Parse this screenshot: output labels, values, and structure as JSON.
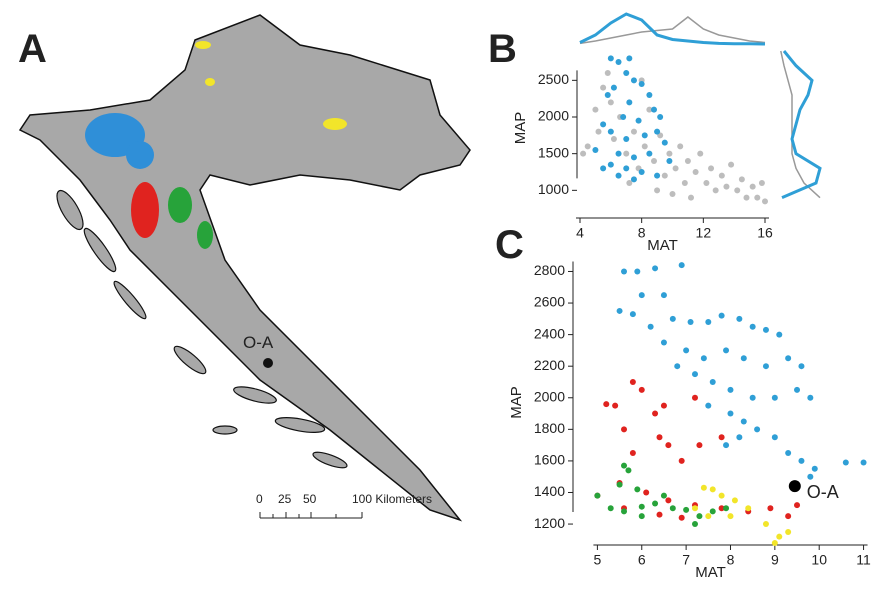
{
  "map": {
    "panel_label": "A",
    "site_label": "O-A",
    "scale_labels": [
      "0",
      "25",
      "50",
      "100 Kilometers"
    ]
  },
  "chart_data": [
    {
      "type": "scatter",
      "panel_label": "B",
      "xlabel": "MAT",
      "ylabel": "MAP",
      "xlim": [
        4,
        16
      ],
      "ylim": [
        800,
        2900
      ],
      "xticks": [
        4,
        8,
        12,
        16
      ],
      "yticks": [
        1000,
        1500,
        2000,
        2500
      ],
      "series": [
        {
          "color": "#bdbdbd",
          "x": [
            4.2,
            4.5,
            5.0,
            5.2,
            5.5,
            6.0,
            6.2,
            6.6,
            7.0,
            7.5,
            7.8,
            8.2,
            8.5,
            8.8,
            9.2,
            9.5,
            9.8,
            10.2,
            10.5,
            10.8,
            11.0,
            11.5,
            11.8,
            12.2,
            12.5,
            12.8,
            13.2,
            13.5,
            13.8,
            14.2,
            14.5,
            14.8,
            15.2,
            15.5,
            15.8,
            16.0,
            9.0,
            10.0,
            11.2,
            7.2,
            5.8,
            8.0
          ],
          "values": [
            1500,
            1600,
            2100,
            1800,
            2400,
            2200,
            1700,
            2000,
            1500,
            1800,
            1300,
            1600,
            2100,
            1400,
            1750,
            1200,
            1500,
            1300,
            1600,
            1100,
            1400,
            1250,
            1500,
            1100,
            1300,
            1000,
            1200,
            1050,
            1350,
            1000,
            1150,
            900,
            1050,
            900,
            1100,
            850,
            1000,
            950,
            900,
            1100,
            2600,
            2500
          ]
        },
        {
          "color": "#2f9fd6",
          "x": [
            6.0,
            6.5,
            7.0,
            7.5,
            8.0,
            8.5,
            6.2,
            5.8,
            7.2,
            8.8,
            9.2,
            6.8,
            7.8,
            5.5,
            6.0,
            8.2,
            9.0,
            7.0,
            9.5,
            5.0,
            6.5,
            7.5,
            8.5,
            6.0,
            7.0,
            8.0,
            9.0,
            6.5,
            7.5,
            5.5,
            9.8,
            7.2
          ],
          "values": [
            2800,
            2750,
            2600,
            2500,
            2450,
            2300,
            2400,
            2300,
            2200,
            2100,
            2000,
            2000,
            1950,
            1900,
            1800,
            1750,
            1800,
            1700,
            1650,
            1550,
            1500,
            1450,
            1500,
            1350,
            1300,
            1250,
            1200,
            1200,
            1150,
            1300,
            1400,
            2800
          ]
        }
      ],
      "marginal_x": {
        "x": [
          4,
          5,
          6,
          7,
          8,
          9,
          10,
          11,
          12,
          13,
          14,
          15,
          16
        ],
        "series": [
          {
            "color": "#999999",
            "values": [
              0.02,
              0.1,
              0.2,
              0.3,
              0.4,
              0.45,
              0.5,
              0.9,
              0.5,
              0.3,
              0.2,
              0.1,
              0.05
            ]
          },
          {
            "color": "#2f9fd6",
            "values": [
              0.05,
              0.3,
              0.7,
              1.0,
              0.8,
              0.3,
              0.15,
              0.1,
              0.05,
              0.02,
              0.01,
              0.01,
              0
            ]
          }
        ]
      },
      "marginal_y": {
        "y": [
          900,
          1100,
          1300,
          1500,
          1700,
          1900,
          2100,
          2300,
          2500,
          2700,
          2900
        ],
        "series": [
          {
            "color": "#999999",
            "values": [
              1.0,
              0.6,
              0.4,
              0.3,
              0.3,
              0.3,
              0.3,
              0.3,
              0.2,
              0.1,
              0.02
            ]
          },
          {
            "color": "#2f9fd6",
            "values": [
              0.05,
              0.9,
              1.0,
              0.4,
              0.3,
              0.4,
              0.5,
              0.7,
              0.8,
              0.4,
              0.1
            ]
          }
        ]
      }
    },
    {
      "type": "scatter",
      "panel_label": "C",
      "xlabel": "MAT",
      "ylabel": "MAP",
      "xlim": [
        4.45,
        11.1
      ],
      "ylim": [
        1080,
        2860
      ],
      "xticks": [
        5,
        6,
        7,
        8,
        9,
        10,
        11
      ],
      "yticks": [
        1200,
        1400,
        1600,
        1800,
        2000,
        2200,
        2400,
        2600,
        2800
      ],
      "series": [
        {
          "color": "#2f9fd6",
          "x": [
            5.6,
            5.9,
            6.3,
            6.9,
            6.0,
            6.5,
            5.5,
            5.8,
            6.2,
            6.7,
            7.1,
            7.5,
            7.8,
            8.2,
            8.5,
            8.8,
            9.1,
            6.5,
            7.0,
            7.4,
            7.9,
            8.3,
            8.8,
            9.3,
            9.6,
            6.8,
            7.2,
            7.6,
            8.0,
            8.5,
            9.0,
            9.5,
            9.8,
            7.5,
            8.0,
            8.3,
            8.6,
            9.0,
            8.2,
            9.3,
            9.6,
            9.9,
            10.6,
            11.0,
            7.9,
            9.8
          ],
          "values": [
            2800,
            2800,
            2820,
            2840,
            2650,
            2650,
            2550,
            2530,
            2450,
            2500,
            2480,
            2480,
            2520,
            2500,
            2450,
            2430,
            2400,
            2350,
            2300,
            2250,
            2300,
            2250,
            2200,
            2250,
            2200,
            2200,
            2150,
            2100,
            2050,
            2000,
            2000,
            2050,
            2000,
            1950,
            1900,
            1850,
            1800,
            1750,
            1750,
            1650,
            1600,
            1550,
            1590,
            1590,
            1700,
            1500
          ]
        },
        {
          "color": "#e0231f",
          "x": [
            5.2,
            5.4,
            6.5,
            6.3,
            5.8,
            6.0,
            5.6,
            5.8,
            6.4,
            6.6,
            7.3,
            7.8,
            6.9,
            7.2,
            5.5,
            5.0,
            5.6,
            6.1,
            6.6,
            7.2,
            7.8,
            8.4,
            8.9,
            9.3,
            9.5,
            6.4,
            6.9
          ],
          "values": [
            1960,
            1950,
            1950,
            1900,
            2100,
            2050,
            1800,
            1650,
            1750,
            1700,
            1700,
            1750,
            1600,
            2000,
            1460,
            1380,
            1300,
            1400,
            1350,
            1320,
            1300,
            1280,
            1300,
            1250,
            1320,
            1260,
            1240
          ]
        },
        {
          "color": "#27a33a",
          "x": [
            5.0,
            5.3,
            5.6,
            6.0,
            6.3,
            6.7,
            7.0,
            7.3,
            7.6,
            7.9,
            5.5,
            5.9,
            6.5,
            7.2,
            6.0,
            5.6,
            5.7
          ],
          "values": [
            1380,
            1300,
            1280,
            1310,
            1330,
            1300,
            1290,
            1250,
            1280,
            1300,
            1450,
            1420,
            1380,
            1200,
            1250,
            1570,
            1540
          ]
        },
        {
          "color": "#f2e52a",
          "x": [
            7.2,
            7.6,
            7.8,
            8.1,
            8.4,
            8.0,
            8.8,
            9.1,
            9.3,
            9.0,
            7.5,
            7.4
          ],
          "values": [
            1300,
            1420,
            1380,
            1350,
            1300,
            1250,
            1200,
            1120,
            1150,
            1080,
            1250,
            1430
          ]
        }
      ],
      "annotations": [
        {
          "x": 9.45,
          "y": 1440,
          "label": "O-A",
          "color": "#000000"
        }
      ]
    }
  ]
}
